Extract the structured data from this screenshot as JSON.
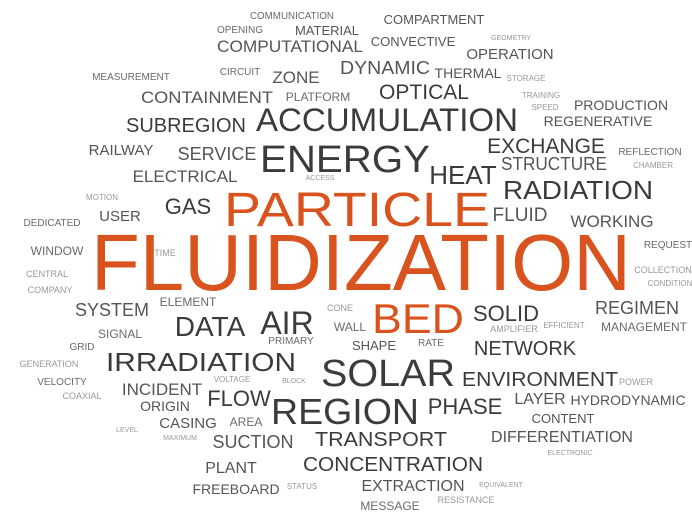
{
  "words": [
    "COMMUNICATION",
    "OPENING",
    "MATERIAL",
    "COMPARTMENT",
    "COMPUTATIONAL",
    "CONVECTIVE",
    "GEOMETRY",
    "OPERATION",
    "MEASUREMENT",
    "CIRCUIT",
    "ZONE",
    "DYNAMIC",
    "THERMAL",
    "STORAGE",
    "CONTAINMENT",
    "PLATFORM",
    "OPTICAL",
    "TRAINING",
    "SPEED",
    "PRODUCTION",
    "SUBREGION",
    "ACCUMULATION",
    "REGENERATIVE",
    "EXCHANGE",
    "RAILWAY",
    "SERVICE",
    "ENERGY",
    "REFLECTION",
    "CHAMBER",
    "STRUCTURE",
    "HEAT",
    "ELECTRICAL",
    "ACCESS",
    "RADIATION",
    "MOTION",
    "GAS",
    "PARTICLE",
    "FLUID",
    "USER",
    "WORKING",
    "DEDICATED",
    "WINDOW",
    "TIME",
    "FLUIDIZATION",
    "REQUEST",
    "CENTRAL",
    "COLLECTION",
    "COMPANY",
    "CONDITION",
    "SYSTEM",
    "ELEMENT",
    "REGIMEN",
    "SOLID",
    "CONE",
    "BED",
    "DATA",
    "AIR",
    "SIGNAL",
    "WALL",
    "AMPLIFIER",
    "EFFICIENT",
    "MANAGEMENT",
    "PRIMARY",
    "SHAPE",
    "RATE",
    "NETWORK",
    "GRID",
    "IRRADIATION",
    "GENERATION",
    "SOLAR",
    "ENVIRONMENT",
    "POWER",
    "VELOCITY",
    "VOLTAGE",
    "BLOCK",
    "INCIDENT",
    "FLOW",
    "LAYER",
    "HYDRODYNAMIC",
    "COAXIAL",
    "ORIGIN",
    "REGION",
    "PHASE",
    "CASING",
    "AREA",
    "CONTENT",
    "LEVEL",
    "MAXIMUM",
    "SUCTION",
    "TRANSPORT",
    "DIFFERENTIATION",
    "ELECTRONIC",
    "PLANT",
    "CONCENTRATION",
    "FREEBOARD",
    "STATUS",
    "EXTRACTION",
    "EQUIVALENT",
    "RESISTANCE",
    "MESSAGE"
  ]
}
